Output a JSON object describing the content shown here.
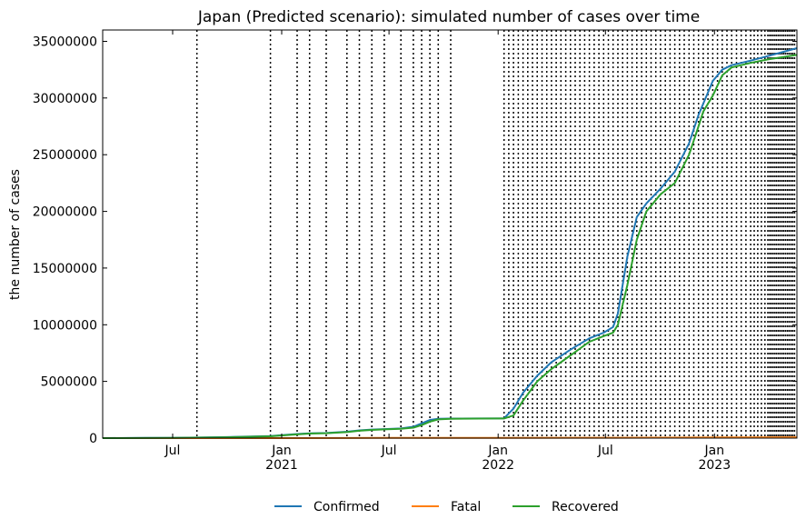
{
  "chart_data": {
    "type": "line",
    "title": "Japan (Predicted scenario): simulated number of cases over time",
    "xlabel": "",
    "ylabel": "the number of cases",
    "xlim": [
      "2020-03-05",
      "2023-05-20"
    ],
    "ylim": [
      0,
      36000000
    ],
    "grid": false,
    "legend_position": "bottom-center",
    "y_ticks": [
      0,
      5000000,
      10000000,
      15000000,
      20000000,
      25000000,
      30000000,
      35000000
    ],
    "y_tick_labels": [
      "0",
      "5000000",
      "10000000",
      "15000000",
      "20000000",
      "25000000",
      "30000000",
      "35000000"
    ],
    "x_ticks": [
      {
        "date": "2020-07-01",
        "label": "Jul",
        "sublabel": ""
      },
      {
        "date": "2021-01-01",
        "label": "Jan",
        "sublabel": "2021"
      },
      {
        "date": "2021-07-01",
        "label": "Jul",
        "sublabel": ""
      },
      {
        "date": "2022-01-01",
        "label": "Jan",
        "sublabel": "2022"
      },
      {
        "date": "2022-07-01",
        "label": "Jul",
        "sublabel": ""
      },
      {
        "date": "2023-01-01",
        "label": "Jan",
        "sublabel": "2023"
      }
    ],
    "change_dates": [
      "2020-08-11",
      "2020-12-13",
      "2021-01-27",
      "2021-02-17",
      "2021-03-17",
      "2021-04-21",
      "2021-05-12",
      "2021-06-02",
      "2021-06-23",
      "2021-07-21",
      "2021-08-11",
      "2021-08-25",
      "2021-09-08",
      "2021-09-22",
      "2021-10-13",
      "2022-01-11",
      "2022-01-19",
      "2022-01-27",
      "2022-02-04",
      "2022-02-12",
      "2022-02-20",
      "2022-02-28",
      "2022-03-08",
      "2022-03-16",
      "2022-03-24",
      "2022-04-01",
      "2022-04-09",
      "2022-04-17",
      "2022-04-25",
      "2022-05-03",
      "2022-05-11",
      "2022-05-19",
      "2022-05-27",
      "2022-06-04",
      "2022-06-12",
      "2022-06-20",
      "2022-06-28",
      "2022-07-06",
      "2022-07-14",
      "2022-07-22",
      "2022-07-30",
      "2022-08-07",
      "2022-08-15",
      "2022-08-23",
      "2022-08-31",
      "2022-09-08",
      "2022-09-16",
      "2022-09-24",
      "2022-10-02",
      "2022-10-10",
      "2022-10-18",
      "2022-10-26",
      "2022-11-03",
      "2022-11-11",
      "2022-11-19",
      "2022-11-27",
      "2022-12-05",
      "2022-12-13",
      "2022-12-21",
      "2022-12-29",
      "2023-01-06",
      "2023-01-14",
      "2023-01-22",
      "2023-01-30",
      "2023-02-07",
      "2023-02-15",
      "2023-02-23",
      "2023-03-03",
      "2023-03-09",
      "2023-03-15",
      "2023-03-21",
      "2023-03-27",
      "2023-04-01",
      "2023-04-04",
      "2023-04-07",
      "2023-04-10",
      "2023-04-13",
      "2023-04-16",
      "2023-04-19",
      "2023-04-22",
      "2023-04-25",
      "2023-04-28",
      "2023-05-01",
      "2023-05-04",
      "2023-05-07",
      "2023-05-10",
      "2023-05-13",
      "2023-05-16"
    ],
    "series": [
      {
        "name": "Confirmed",
        "color": "#1f77b4",
        "points": [
          [
            "2020-03-05",
            400
          ],
          [
            "2020-05-15",
            16000
          ],
          [
            "2020-07-01",
            20000
          ],
          [
            "2020-08-11",
            45000
          ],
          [
            "2020-10-01",
            85000
          ],
          [
            "2020-12-13",
            180000
          ],
          [
            "2021-01-27",
            360000
          ],
          [
            "2021-02-17",
            420000
          ],
          [
            "2021-03-17",
            450000
          ],
          [
            "2021-04-21",
            560000
          ],
          [
            "2021-05-12",
            680000
          ],
          [
            "2021-06-02",
            750000
          ],
          [
            "2021-06-23",
            790000
          ],
          [
            "2021-07-21",
            850000
          ],
          [
            "2021-08-11",
            1000000
          ],
          [
            "2021-08-25",
            1300000
          ],
          [
            "2021-09-08",
            1600000
          ],
          [
            "2021-09-22",
            1700000
          ],
          [
            "2021-10-13",
            1720000
          ],
          [
            "2021-12-01",
            1730000
          ],
          [
            "2022-01-11",
            1750000
          ],
          [
            "2022-01-27",
            2600000
          ],
          [
            "2022-02-12",
            4000000
          ],
          [
            "2022-03-08",
            5500000
          ],
          [
            "2022-04-01",
            6700000
          ],
          [
            "2022-05-03",
            7800000
          ],
          [
            "2022-06-04",
            8800000
          ],
          [
            "2022-06-28",
            9300000
          ],
          [
            "2022-07-14",
            9800000
          ],
          [
            "2022-07-22",
            11000000
          ],
          [
            "2022-08-07",
            16000000
          ],
          [
            "2022-08-23",
            19500000
          ],
          [
            "2022-09-08",
            20700000
          ],
          [
            "2022-10-02",
            22000000
          ],
          [
            "2022-10-26",
            23500000
          ],
          [
            "2022-11-19",
            26000000
          ],
          [
            "2022-12-05",
            28500000
          ],
          [
            "2022-12-13",
            29500000
          ],
          [
            "2022-12-29",
            31500000
          ],
          [
            "2023-01-14",
            32500000
          ],
          [
            "2023-01-30",
            32900000
          ],
          [
            "2023-03-03",
            33300000
          ],
          [
            "2023-04-01",
            33700000
          ],
          [
            "2023-05-20",
            34400000
          ]
        ]
      },
      {
        "name": "Fatal",
        "color": "#ff7f0e",
        "points": [
          [
            "2020-03-05",
            0
          ],
          [
            "2020-12-13",
            3000
          ],
          [
            "2021-06-23",
            15000
          ],
          [
            "2022-01-11",
            18400
          ],
          [
            "2022-07-14",
            31000
          ],
          [
            "2023-01-14",
            60000
          ],
          [
            "2023-05-20",
            74000
          ]
        ]
      },
      {
        "name": "Recovered",
        "color": "#2ca02c",
        "points": [
          [
            "2020-03-05",
            300
          ],
          [
            "2020-05-15",
            12000
          ],
          [
            "2020-07-01",
            18000
          ],
          [
            "2020-08-11",
            40000
          ],
          [
            "2020-10-01",
            75000
          ],
          [
            "2020-12-13",
            160000
          ],
          [
            "2021-01-27",
            330000
          ],
          [
            "2021-02-17",
            400000
          ],
          [
            "2021-03-17",
            430000
          ],
          [
            "2021-04-21",
            530000
          ],
          [
            "2021-05-12",
            650000
          ],
          [
            "2021-06-02",
            720000
          ],
          [
            "2021-06-23",
            770000
          ],
          [
            "2021-07-21",
            820000
          ],
          [
            "2021-08-11",
            920000
          ],
          [
            "2021-08-25",
            1150000
          ],
          [
            "2021-09-08",
            1450000
          ],
          [
            "2021-09-22",
            1650000
          ],
          [
            "2021-10-13",
            1700000
          ],
          [
            "2021-12-01",
            1720000
          ],
          [
            "2022-01-11",
            1730000
          ],
          [
            "2022-01-27",
            2000000
          ],
          [
            "2022-02-12",
            3300000
          ],
          [
            "2022-03-08",
            5000000
          ],
          [
            "2022-04-01",
            6100000
          ],
          [
            "2022-05-03",
            7300000
          ],
          [
            "2022-06-04",
            8500000
          ],
          [
            "2022-06-28",
            9000000
          ],
          [
            "2022-07-14",
            9300000
          ],
          [
            "2022-07-22",
            10000000
          ],
          [
            "2022-08-07",
            13500000
          ],
          [
            "2022-08-23",
            17500000
          ],
          [
            "2022-09-08",
            20000000
          ],
          [
            "2022-10-02",
            21500000
          ],
          [
            "2022-10-26",
            22500000
          ],
          [
            "2022-11-19",
            25000000
          ],
          [
            "2022-12-05",
            27500000
          ],
          [
            "2022-12-13",
            28800000
          ],
          [
            "2022-12-29",
            30200000
          ],
          [
            "2023-01-14",
            32000000
          ],
          [
            "2023-01-30",
            32700000
          ],
          [
            "2023-03-03",
            33100000
          ],
          [
            "2023-04-01",
            33400000
          ],
          [
            "2023-05-20",
            33800000
          ]
        ]
      }
    ]
  }
}
